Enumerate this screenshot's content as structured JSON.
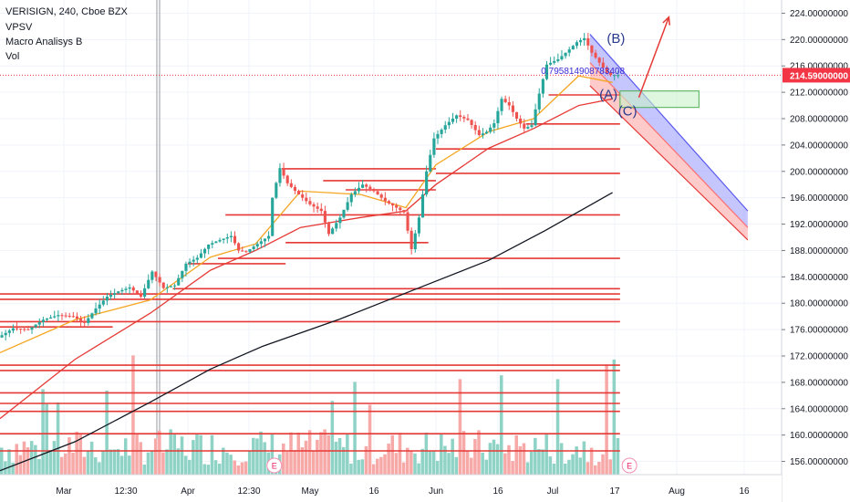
{
  "header": {
    "symbol_line": "VERISIGN, 240, Cboe BZX",
    "indicator_1": "VPSV",
    "indicator_2": "Macro Analisys B",
    "indicator_3": "Vol"
  },
  "chart_data": {
    "type": "candlestick",
    "symbol": "VERISIGN",
    "interval": "240",
    "exchange": "Cboe BZX",
    "y_axis": {
      "ticks": [
        "224.00000000",
        "220.00000000",
        "216.00000000",
        "212.00000000",
        "208.00000000",
        "204.00000000",
        "200.00000000",
        "196.00000000",
        "192.00000000",
        "188.00000000",
        "184.00000000",
        "180.00000000",
        "176.00000000",
        "172.00000000",
        "168.00000000",
        "164.00000000",
        "160.00000000",
        "156.00000000"
      ],
      "range": [
        154,
        226
      ]
    },
    "x_axis": {
      "ticks": [
        "Mar",
        "12:30",
        "Apr",
        "12:30",
        "May",
        "16",
        "Jun",
        "16",
        "Jul",
        "17",
        "Aug",
        "16"
      ]
    },
    "last_price": {
      "value": 214.59,
      "label": "214.59000000",
      "color": "#f23645"
    },
    "price_path": [
      [
        0,
        174.8
      ],
      [
        4,
        176.2
      ],
      [
        8,
        176.0
      ],
      [
        12,
        177.5
      ],
      [
        16,
        178.2
      ],
      [
        20,
        178.0
      ],
      [
        23,
        177.0
      ],
      [
        26,
        179.2
      ],
      [
        29,
        181.0
      ],
      [
        32,
        181.8
      ],
      [
        35,
        182.4
      ],
      [
        38,
        181.0
      ],
      [
        41,
        184.8
      ],
      [
        44,
        182.3
      ],
      [
        47,
        182.7
      ],
      [
        50,
        186.0
      ],
      [
        53,
        186.9
      ],
      [
        56,
        188.9
      ],
      [
        59,
        189.6
      ],
      [
        62,
        190.2
      ],
      [
        64,
        188.0
      ],
      [
        66,
        187.8
      ],
      [
        69,
        189.0
      ],
      [
        72,
        190.2
      ],
      [
        73,
        196.0
      ],
      [
        75,
        200.5
      ],
      [
        77,
        198.2
      ],
      [
        80,
        196.5
      ],
      [
        83,
        195.0
      ],
      [
        86,
        194.0
      ],
      [
        88,
        190.5
      ],
      [
        91,
        193.0
      ],
      [
        94,
        196.5
      ],
      [
        97,
        198.0
      ],
      [
        100,
        197.0
      ],
      [
        103,
        195.5
      ],
      [
        106,
        194.5
      ],
      [
        108,
        193.8
      ],
      [
        110,
        188.2
      ],
      [
        112,
        193.0
      ],
      [
        114,
        200.0
      ],
      [
        116,
        205.0
      ],
      [
        119,
        207.0
      ],
      [
        122,
        208.5
      ],
      [
        125,
        207.8
      ],
      [
        128,
        205.5
      ],
      [
        130,
        206.0
      ],
      [
        132,
        207.3
      ],
      [
        134,
        211.0
      ],
      [
        136,
        210.0
      ],
      [
        138,
        208.0
      ],
      [
        140,
        206.5
      ],
      [
        142,
        207.0
      ],
      [
        144,
        211.8
      ],
      [
        146,
        216.2
      ],
      [
        149,
        217.0
      ],
      [
        152,
        218.5
      ],
      [
        154,
        219.6
      ],
      [
        156,
        220.2
      ],
      [
        158,
        218.0
      ],
      [
        160,
        216.5
      ],
      [
        162,
        215.0
      ],
      [
        163,
        214.6
      ]
    ],
    "moving_averages": [
      {
        "color": "#f5a623",
        "path": [
          [
            0,
            172.5
          ],
          [
            20,
            177.5
          ],
          [
            40,
            180.5
          ],
          [
            56,
            187.0
          ],
          [
            68,
            189.0
          ],
          [
            80,
            197.0
          ],
          [
            96,
            196.5
          ],
          [
            108,
            194.5
          ],
          [
            116,
            201.0
          ],
          [
            130,
            206.0
          ],
          [
            142,
            208.0
          ],
          [
            154,
            214.5
          ],
          [
            163,
            213.5
          ]
        ]
      },
      {
        "color": "#e53935",
        "path": [
          [
            0,
            162.5
          ],
          [
            20,
            171.5
          ],
          [
            40,
            178.5
          ],
          [
            56,
            185.0
          ],
          [
            68,
            188.0
          ],
          [
            80,
            191.5
          ],
          [
            96,
            193.0
          ],
          [
            108,
            194.0
          ],
          [
            116,
            198.0
          ],
          [
            130,
            203.5
          ],
          [
            142,
            206.5
          ],
          [
            154,
            210.0
          ],
          [
            163,
            211.0
          ]
        ]
      },
      {
        "color": "#131722",
        "path": [
          [
            0,
            154.6
          ],
          [
            20,
            159.0
          ],
          [
            40,
            165.0
          ],
          [
            56,
            170.0
          ],
          [
            70,
            173.5
          ],
          [
            90,
            177.5
          ],
          [
            110,
            182.0
          ],
          [
            130,
            186.5
          ],
          [
            145,
            191.0
          ],
          [
            163,
            196.8
          ]
        ]
      }
    ],
    "horizontal_levels": [
      {
        "price": 211.6,
        "from": 146,
        "to": 165
      },
      {
        "price": 207.2,
        "from": 140,
        "to": 165
      },
      {
        "price": 203.4,
        "from": 116,
        "to": 165
      },
      {
        "price": 200.4,
        "from": 75,
        "to": 116
      },
      {
        "price": 199.7,
        "from": 116,
        "to": 165
      },
      {
        "price": 198.6,
        "from": 86,
        "to": 116
      },
      {
        "price": 197.2,
        "from": 92,
        "to": 116
      },
      {
        "price": 193.4,
        "from": 60,
        "to": 165
      },
      {
        "price": 189.2,
        "from": 76,
        "to": 114
      },
      {
        "price": 186.8,
        "from": 58,
        "to": 165
      },
      {
        "price": 186.0,
        "from": 50,
        "to": 76
      },
      {
        "price": 182.2,
        "from": 46,
        "to": 165
      },
      {
        "price": 181.4,
        "from": 0,
        "to": 165
      },
      {
        "price": 180.6,
        "from": 0,
        "to": 165
      },
      {
        "price": 177.2,
        "from": 0,
        "to": 165
      },
      {
        "price": 176.4,
        "from": 0,
        "to": 30
      },
      {
        "price": 170.6,
        "from": 0,
        "to": 165
      },
      {
        "price": 169.8,
        "from": 0,
        "to": 165
      },
      {
        "price": 166.4,
        "from": 0,
        "to": 165
      },
      {
        "price": 164.8,
        "from": 0,
        "to": 165
      },
      {
        "price": 163.6,
        "from": 0,
        "to": 165
      },
      {
        "price": 160.2,
        "from": 0,
        "to": 165
      },
      {
        "price": 157.6,
        "from": 0,
        "to": 165
      }
    ],
    "annotations": {
      "wave_labels": [
        {
          "text": "(B)",
          "x": 161.5,
          "y": 219.5
        },
        {
          "text": "(A)",
          "x": 159.5,
          "y": 211.0
        },
        {
          "text": "(C)",
          "x": 164.5,
          "y": 208.5
        }
      ],
      "fib_text": {
        "text": "0.795814908783408",
        "x": 144,
        "y": 214.8
      },
      "projection_arrow": {
        "from": [
          170,
          211.2
        ],
        "to": [
          178,
          223.4
        ],
        "color": "#e53935"
      },
      "target_box": {
        "x1": 165,
        "x2": 186,
        "y1": 212.2,
        "y2": 209.7
      },
      "descending_channel": {
        "upper": {
          "from": [
            157,
            220.8
          ],
          "to": [
            199,
            194.0
          ],
          "color": "#5b5bf0"
        },
        "middle": {
          "from": [
            157,
            216.5
          ],
          "to": [
            199,
            191.5
          ],
          "color": "#ff7070"
        },
        "lower": {
          "from": [
            157,
            213.0
          ],
          "to": [
            199,
            189.6
          ],
          "color": "#e53935"
        }
      },
      "earnings_markers": [
        {
          "text": "E",
          "x": 73
        },
        {
          "text": "E",
          "x": 167.5
        }
      ]
    },
    "volume": {
      "seed": 7,
      "bars": 165
    }
  }
}
